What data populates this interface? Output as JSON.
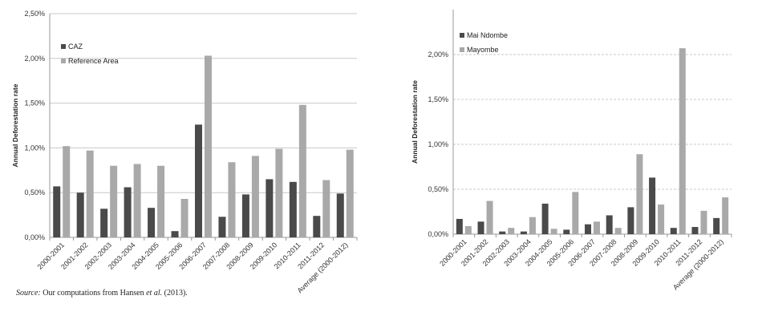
{
  "colors": {
    "dark": "#4a4a4a",
    "light": "#a9a9a9",
    "axis": "#999999",
    "grid": "#c8c8c8"
  },
  "source_note": {
    "label": "Source:",
    "pre": "Our computations from Hansen",
    "etal": "et al.",
    "post": "(2013)."
  },
  "chart_data": [
    {
      "type": "bar",
      "ylabel": "Annual Deforestation rate",
      "ylim": [
        0,
        2.5
      ],
      "yticks": [
        "0,00%",
        "0,50%",
        "1,00%",
        "1,50%",
        "2,00%",
        "2,50%"
      ],
      "ytick_values": [
        0,
        0.5,
        1.0,
        1.5,
        2.0,
        2.5
      ],
      "grid": "solid",
      "legend_position": "top-left",
      "categories": [
        "2000-2001",
        "2001-2002",
        "2002-2003",
        "2003-2004",
        "2004-2005",
        "2005-2006",
        "2006-2007",
        "2007-2008",
        "2008-2009",
        "2009-2010",
        "2010-2011",
        "2011-2012",
        "Average (2000-2012)"
      ],
      "series": [
        {
          "name": "CAZ",
          "values": [
            0.57,
            0.5,
            0.32,
            0.56,
            0.33,
            0.07,
            1.26,
            0.23,
            0.48,
            0.65,
            0.62,
            0.24,
            0.49
          ]
        },
        {
          "name": "Reference Area",
          "values": [
            1.02,
            0.97,
            0.8,
            0.82,
            0.8,
            0.43,
            2.03,
            0.84,
            0.91,
            0.99,
            1.48,
            0.64,
            0.98
          ]
        }
      ]
    },
    {
      "type": "bar",
      "ylabel": "Annual Deforestation rate",
      "ylim": [
        0,
        2.5
      ],
      "yticks": [
        "0,00%",
        "0,50%",
        "1,00%",
        "1,50%",
        "2,00%"
      ],
      "ytick_values": [
        0,
        0.5,
        1.0,
        1.5,
        2.0
      ],
      "grid": "dashed",
      "legend_position": "top-left",
      "categories": [
        "2000-2001",
        "2001-2002",
        "2002-2003",
        "2003-2004",
        "2004-2005",
        "2005-2006",
        "2006-2007",
        "2007-2008",
        "2008-2009",
        "2009-2010",
        "2010-2011",
        "2011-2012",
        "Average (2000-2012)"
      ],
      "series": [
        {
          "name": "Mai Ndombe",
          "values": [
            0.17,
            0.14,
            0.03,
            0.03,
            0.34,
            0.05,
            0.11,
            0.21,
            0.3,
            0.63,
            0.07,
            0.08,
            0.18
          ]
        },
        {
          "name": "Mayombe",
          "values": [
            0.09,
            0.37,
            0.07,
            0.19,
            0.06,
            0.47,
            0.14,
            0.07,
            0.89,
            0.33,
            2.07,
            0.26,
            0.41
          ]
        }
      ]
    }
  ]
}
